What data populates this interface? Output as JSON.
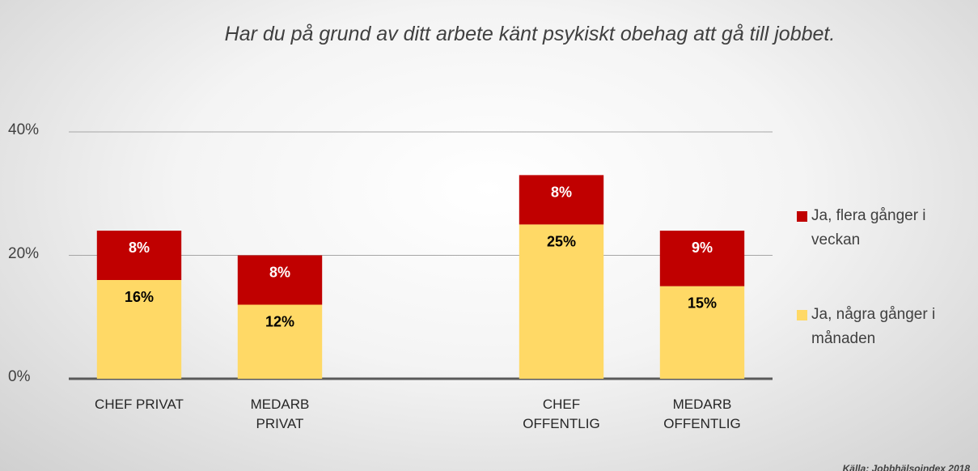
{
  "chart_data": {
    "type": "stacked_bar",
    "title": "Har du på grund av ditt arbete känt psykiskt obehag att gå till jobbet.",
    "source": "Källa: Jobbhälsoindex 2018",
    "categories": [
      "CHEF PRIVAT",
      "MEDARB PRIVAT",
      null,
      "CHEF OFFENTLIG",
      "MEDARB OFFENTLIG"
    ],
    "series": [
      {
        "name": "Ja, några gånger i månaden",
        "color": "#ffd966",
        "label_color": "#000000",
        "values": [
          16,
          12,
          null,
          25,
          15
        ],
        "value_labels": [
          "16%",
          "12%",
          null,
          "25%",
          "15%"
        ]
      },
      {
        "name": "Ja, flera gånger i veckan",
        "color": "#c00000",
        "label_color": "#ffffff",
        "values": [
          8,
          8,
          null,
          8,
          9
        ],
        "value_labels": [
          "8%",
          "8%",
          null,
          "8%",
          "9%"
        ]
      }
    ],
    "ylim": [
      0,
      40
    ],
    "yticks": [
      {
        "value": 0,
        "label": "0%"
      },
      {
        "value": 20,
        "label": "20%"
      },
      {
        "value": 40,
        "label": "40%"
      }
    ],
    "grid": true,
    "legend": "right"
  }
}
